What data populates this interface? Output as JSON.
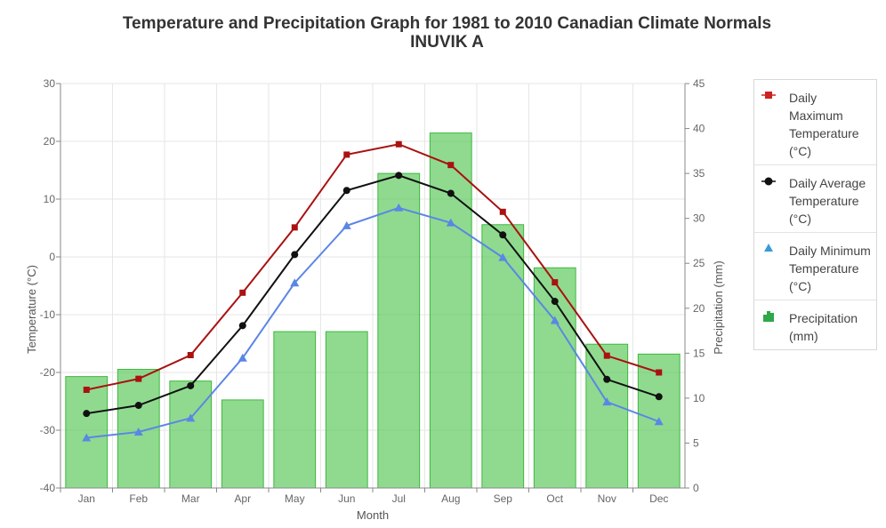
{
  "chart_data": {
    "type": "bar+line",
    "title": "Temperature and Precipitation Graph for 1981 to 2010 Canadian Climate Normals",
    "subtitle": "INUVIK A",
    "xlabel": "Month",
    "ylabel_left": "Temperature (°C)",
    "ylabel_right": "Precipitation (mm)",
    "categories": [
      "Jan",
      "Feb",
      "Mar",
      "Apr",
      "May",
      "Jun",
      "Jul",
      "Aug",
      "Sep",
      "Oct",
      "Nov",
      "Dec"
    ],
    "y_left": {
      "range": [
        -40,
        30
      ],
      "ticks": [
        "30",
        "20",
        "10",
        "0",
        "-10",
        "-20",
        "-30",
        "-40"
      ]
    },
    "y_right": {
      "range": [
        0,
        45
      ],
      "ticks": [
        "45",
        "40",
        "35",
        "30",
        "25",
        "20",
        "15",
        "10",
        "5",
        "0"
      ]
    },
    "grid": true,
    "legend_position": "right",
    "series": [
      {
        "name": "Daily Maximum Temperature (°C)",
        "type": "line",
        "axis": "left",
        "color": "#aa1111",
        "marker": "square",
        "values": [
          -23.0,
          -21.1,
          -17.0,
          -6.2,
          5.1,
          17.7,
          19.5,
          15.9,
          7.8,
          -4.4,
          -17.1,
          -20.0
        ]
      },
      {
        "name": "Daily Average Temperature (°C)",
        "type": "line",
        "axis": "left",
        "color": "#111111",
        "marker": "circle",
        "values": [
          -27.1,
          -25.7,
          -22.3,
          -11.9,
          0.4,
          11.5,
          14.1,
          11.0,
          3.8,
          -7.7,
          -21.2,
          -24.2
        ]
      },
      {
        "name": "Daily Minimum Temperature (°C)",
        "type": "line",
        "axis": "left",
        "color": "#5b86e5",
        "marker": "triangle",
        "values": [
          -31.3,
          -30.3,
          -27.9,
          -17.5,
          -4.5,
          5.4,
          8.5,
          5.9,
          -0.1,
          -11.0,
          -25.1,
          -28.5
        ]
      },
      {
        "name": "Precipitation (mm)",
        "type": "bar",
        "axis": "right",
        "color": "#53c653",
        "values": [
          12.4,
          13.2,
          11.9,
          9.8,
          17.4,
          17.4,
          35.0,
          39.5,
          29.3,
          24.5,
          16.0,
          14.9
        ]
      }
    ]
  },
  "legend": {
    "items": [
      {
        "label": "Daily Maximum Temperature (°C)",
        "icon": "square-marker-icon",
        "color": "#cc2222"
      },
      {
        "label": "Daily Average Temperature (°C)",
        "icon": "circle-marker-icon",
        "color": "#111111"
      },
      {
        "label": "Daily Minimum Temperature (°C)",
        "icon": "triangle-marker-icon",
        "color": "#3a9ad9"
      },
      {
        "label": "Precipitation (mm)",
        "icon": "bar-icon",
        "color": "#2ea84a"
      }
    ]
  }
}
